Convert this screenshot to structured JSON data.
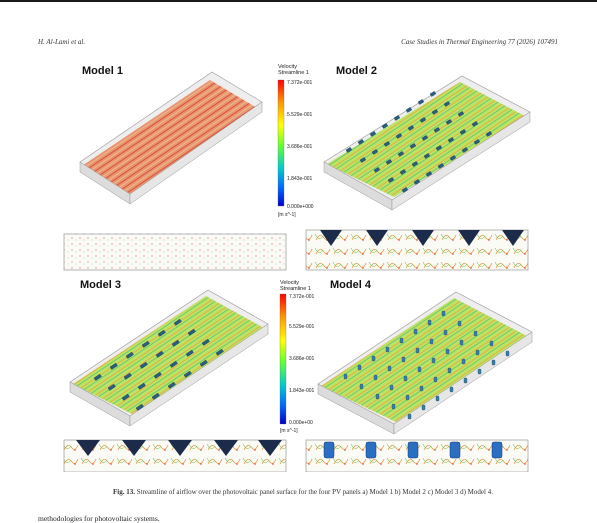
{
  "header": {
    "authors": "H. Al-Lami et al.",
    "journal": "Case Studies in Thermal Engineering 77 (2026) 107491"
  },
  "figure": {
    "models": [
      {
        "label": "Model 1",
        "geometry": "plain"
      },
      {
        "label": "Model 2",
        "geometry": "triangular-fins"
      },
      {
        "label": "Model 3",
        "geometry": "triangular-fins"
      },
      {
        "label": "Model 4",
        "geometry": "cylindrical-fins"
      }
    ],
    "legend": {
      "title_line1": "Velocity",
      "title_line2": "Streamline 1",
      "ticks": [
        "7.372e-001",
        "5.529e-001",
        "3.686e-001",
        "1.843e-001",
        "0.000e+000"
      ],
      "ticks_lower": [
        "7.372e-001",
        "5.529e-001",
        "3.686e-001",
        "1.843e-001",
        "0.000e+00"
      ],
      "unit": "[m s^-1]",
      "colors": [
        "#ff0000",
        "#ff9900",
        "#ffff00",
        "#66ff33",
        "#00cccc",
        "#0066ff",
        "#0000cc"
      ]
    }
  },
  "caption": {
    "label": "Fig. 13.",
    "text": "Streamline of airflow over the photovoltaic panel surface for the four PV panels a) Model 1 b) Model 2 c) Model 3 d) Model 4."
  },
  "body_text": "methodologies for photovoltaic systems."
}
